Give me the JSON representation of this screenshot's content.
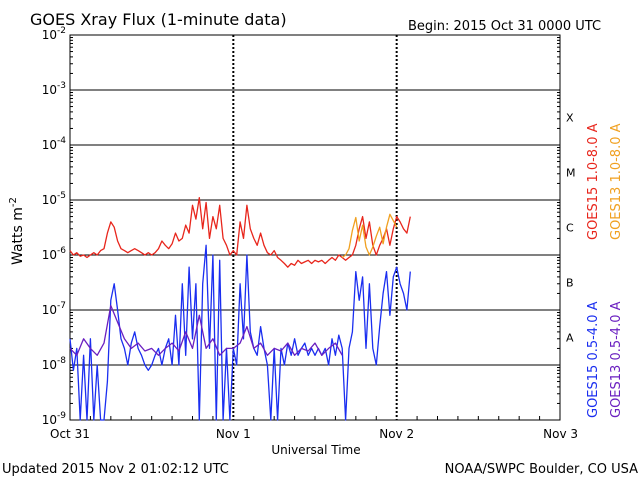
{
  "header": {
    "title": "GOES Xray Flux (1-minute data)",
    "begin": "Begin:  2015 Oct 31 0000 UTC"
  },
  "footer": {
    "updated": "Updated 2015 Nov  2 01:02:12 UTC",
    "source": "NOAA/SWPC Boulder, CO USA"
  },
  "colors": {
    "goes15_long": "#e8261c",
    "goes13_long": "#f0a020",
    "goes15_short": "#1a2ef0",
    "goes13_short": "#6a1fc0"
  },
  "chart_data": {
    "type": "line",
    "title": "GOES Xray Flux (1-minute data)",
    "xlabel": "Universal Time",
    "ylabel": "Watts m",
    "ylabel_superscript": "-2",
    "yscale": "log",
    "ylim": [
      1e-09,
      0.01
    ],
    "y_ticks": [
      {
        "value": 1e-09,
        "base": "10",
        "exp": "-9"
      },
      {
        "value": 1e-08,
        "base": "10",
        "exp": "-8"
      },
      {
        "value": 1e-07,
        "base": "10",
        "exp": "-7"
      },
      {
        "value": 1e-06,
        "base": "10",
        "exp": "-6"
      },
      {
        "value": 1e-05,
        "base": "10",
        "exp": "-5"
      },
      {
        "value": 0.0001,
        "base": "10",
        "exp": "-4"
      },
      {
        "value": 0.001,
        "base": "10",
        "exp": "-3"
      },
      {
        "value": 0.01,
        "base": "10",
        "exp": "-2"
      }
    ],
    "x_ticks": [
      "Oct 31",
      "Nov 1",
      "Nov 2",
      "Nov 3"
    ],
    "xlim_hours": [
      0,
      72
    ],
    "grid": "horizontal lines at each decade; dotted vertical lines at day boundaries",
    "flare_classes": [
      {
        "label": "A",
        "value": 1e-08
      },
      {
        "label": "B",
        "value": 1e-07
      },
      {
        "label": "C",
        "value": 1e-06
      },
      {
        "label": "M",
        "value": 1e-05
      },
      {
        "label": "X",
        "value": 0.0001
      }
    ],
    "legend_placement": "right, vertical",
    "legend": [
      {
        "name": "GOES15 1.0-8.0 A",
        "color": "#e8261c",
        "group": "long"
      },
      {
        "name": "GOES13 1.0-8.0 A",
        "color": "#f0a020",
        "group": "long"
      },
      {
        "name": "GOES15 0.5-4.0 A",
        "color": "#1a2ef0",
        "group": "short"
      },
      {
        "name": "GOES13 0.5-4.0 A",
        "color": "#6a1fc0",
        "group": "short"
      }
    ],
    "series": [
      {
        "name": "GOES15 1.0-8.0 A",
        "color": "#e8261c",
        "x": [
          0,
          0.5,
          1,
          1.5,
          2,
          2.5,
          3,
          3.5,
          4,
          4.5,
          5,
          5.5,
          6,
          6.5,
          7,
          7.5,
          8,
          8.5,
          9,
          9.5,
          10,
          10.5,
          11,
          11.5,
          12,
          12.5,
          13,
          13.5,
          14,
          14.5,
          15,
          15.5,
          16,
          16.5,
          17,
          17.5,
          18,
          18.5,
          19,
          19.5,
          20,
          20.5,
          21,
          21.5,
          22,
          22.5,
          23,
          23.5,
          24,
          24.5,
          25,
          25.5,
          26,
          26.5,
          27,
          27.5,
          28,
          28.5,
          29,
          29.5,
          30,
          30.5,
          31,
          31.5,
          32,
          32.5,
          33,
          33.5,
          34,
          34.5,
          35,
          35.5,
          36,
          36.5,
          37,
          37.5,
          38,
          38.5,
          39,
          39.5,
          40,
          40.5,
          41,
          41.5,
          42,
          42.5,
          43,
          43.5,
          44,
          44.5,
          45,
          45.5,
          46,
          46.5,
          47,
          47.5,
          48,
          48.5,
          49,
          49.5,
          50
        ],
        "y": [
          1.2e-06,
          1e-06,
          1.1e-06,
          9.5e-07,
          1e-06,
          9e-07,
          1e-06,
          1.1e-06,
          1e-06,
          1.2e-06,
          1.3e-06,
          2.5e-06,
          4e-06,
          3.2e-06,
          1.8e-06,
          1.3e-06,
          1.2e-06,
          1.1e-06,
          1.2e-06,
          1.3e-06,
          1.2e-06,
          1.1e-06,
          1e-06,
          1.1e-06,
          1e-06,
          1.1e-06,
          1.3e-06,
          1.8e-06,
          1.5e-06,
          1.3e-06,
          1.6e-06,
          2.5e-06,
          1.8e-06,
          2e-06,
          3.5e-06,
          2.5e-06,
          8e-06,
          4.5e-06,
          1.1e-05,
          3e-06,
          9e-06,
          2e-06,
          5e-06,
          3e-06,
          8e-06,
          2e-06,
          1.5e-06,
          1e-06,
          1.2e-06,
          1e-06,
          4e-06,
          2e-06,
          8e-06,
          3e-06,
          2e-06,
          1.5e-06,
          2.5e-06,
          1.5e-06,
          1.1e-06,
          1e-06,
          1.2e-06,
          9e-07,
          8e-07,
          7e-07,
          6e-07,
          7e-07,
          6.5e-07,
          8e-07,
          7e-07,
          7.5e-07,
          8e-07,
          7e-07,
          8e-07,
          7.5e-07,
          8e-07,
          7e-07,
          8e-07,
          9e-07,
          8e-07,
          1e-06,
          9e-07,
          8e-07,
          9e-07,
          1e-06,
          1.5e-06,
          3e-06,
          5e-06,
          2e-06,
          4e-06,
          1.5e-06,
          1e-06,
          1.5e-06,
          2e-06,
          3e-06,
          1.5e-06,
          3e-06,
          5e-06,
          4e-06,
          3e-06,
          2.5e-06,
          5e-06
        ]
      },
      {
        "name": "GOES13 1.0-8.0 A",
        "color": "#f0a020",
        "x": [
          40,
          40.5,
          41,
          41.5,
          42,
          42.5,
          43,
          43.5,
          44,
          44.5,
          45,
          45.5,
          46,
          46.5,
          47,
          47.5,
          48
        ],
        "y": [
          9e-07,
          1e-06,
          1.3e-06,
          2.8e-06,
          4.8e-06,
          1.8e-06,
          3.5e-06,
          1.4e-06,
          1e-06,
          1.4e-06,
          2.2e-06,
          3.2e-06,
          1.6e-06,
          3.2e-06,
          5.5e-06,
          4.2e-06,
          3.2e-06
        ]
      },
      {
        "name": "GOES15 0.5-4.0 A",
        "color": "#1a2ef0",
        "x": [
          0,
          0.5,
          1,
          1.5,
          2,
          2.5,
          3,
          3.5,
          4,
          4.5,
          5,
          5.5,
          6,
          6.5,
          7,
          7.5,
          8,
          8.5,
          9,
          9.5,
          10,
          10.5,
          11,
          11.5,
          12,
          12.5,
          13,
          13.5,
          14,
          14.5,
          15,
          15.5,
          16,
          16.5,
          17,
          17.5,
          18,
          18.5,
          19,
          19.5,
          20,
          20.5,
          21,
          21.5,
          22,
          22.5,
          23,
          23.5,
          24,
          24.5,
          25,
          25.5,
          26,
          26.5,
          27,
          27.5,
          28,
          28.5,
          29,
          29.5,
          30,
          30.5,
          31,
          31.5,
          32,
          32.5,
          33,
          33.5,
          34,
          34.5,
          35,
          35.5,
          36,
          36.5,
          37,
          37.5,
          38,
          38.5,
          39,
          39.5,
          40,
          40.5,
          41,
          41.5,
          42,
          42.5,
          43,
          43.5,
          44,
          44.5,
          45,
          45.5,
          46,
          46.5,
          47,
          47.5,
          48,
          48.5,
          49,
          49.5,
          50
        ],
        "y": [
          3e-08,
          8e-09,
          2e-08,
          1e-09,
          1.5e-08,
          1e-09,
          3e-08,
          1e-09,
          1e-08,
          1e-09,
          1e-09,
          5e-09,
          1.5e-07,
          3e-07,
          1e-07,
          3e-08,
          2e-08,
          1e-08,
          2.5e-08,
          4e-08,
          2e-08,
          1.5e-08,
          1e-08,
          8e-09,
          1e-08,
          1.5e-08,
          2e-08,
          1e-08,
          2e-08,
          3e-08,
          1e-08,
          8e-08,
          1e-08,
          3e-07,
          1.5e-08,
          6e-07,
          3e-08,
          3e-07,
          1e-09,
          3e-07,
          1.5e-06,
          2e-08,
          1e-06,
          1e-09,
          8e-07,
          1e-09,
          2e-08,
          1e-09,
          2e-08,
          1e-08,
          3e-07,
          3e-08,
          1e-06,
          4e-08,
          2e-08,
          1.5e-08,
          5e-08,
          2e-08,
          1e-08,
          1e-09,
          2e-08,
          1e-09,
          2e-08,
          1e-08,
          2.5e-08,
          1.5e-08,
          3e-08,
          1.5e-08,
          2e-08,
          2.5e-08,
          1.5e-08,
          2e-08,
          1.5e-08,
          2e-08,
          1.5e-08,
          2e-08,
          1e-08,
          3e-08,
          1.5e-08,
          3.5e-08,
          2e-08,
          1e-09,
          2e-08,
          4e-08,
          5e-07,
          1.5e-07,
          4e-07,
          2e-08,
          3e-07,
          2e-08,
          1e-08,
          5e-08,
          2e-07,
          5e-07,
          8e-08,
          4e-07,
          6e-07,
          3e-07,
          2e-07,
          1e-07,
          5e-07
        ]
      },
      {
        "name": "GOES13 0.5-4.0 A",
        "color": "#6a1fc0",
        "x": [
          0,
          1,
          2,
          3,
          4,
          5,
          6,
          7,
          8,
          9,
          10,
          11,
          12,
          13,
          14,
          15,
          16,
          17,
          18,
          19,
          20,
          21,
          22,
          23,
          24,
          25,
          26,
          27,
          28,
          29,
          30,
          31,
          32,
          33,
          34,
          35,
          36,
          37,
          38,
          39,
          40
        ],
        "y": [
          2e-08,
          1.5e-08,
          3e-08,
          2e-08,
          1.5e-08,
          2.5e-08,
          1.2e-07,
          6e-08,
          3e-08,
          2e-08,
          2.5e-08,
          1.8e-08,
          2e-08,
          1.5e-08,
          2e-08,
          2.5e-08,
          1.8e-08,
          4e-08,
          2e-08,
          8e-08,
          2e-08,
          3e-08,
          1.5e-08,
          2e-08,
          2e-08,
          2.5e-08,
          5e-08,
          2e-08,
          2.5e-08,
          1.5e-08,
          2e-08,
          1.8e-08,
          2.5e-08,
          1.5e-08,
          2e-08,
          1.8e-08,
          2.5e-08,
          1.5e-08,
          2e-08,
          2.5e-08,
          1.5e-08
        ]
      }
    ]
  }
}
